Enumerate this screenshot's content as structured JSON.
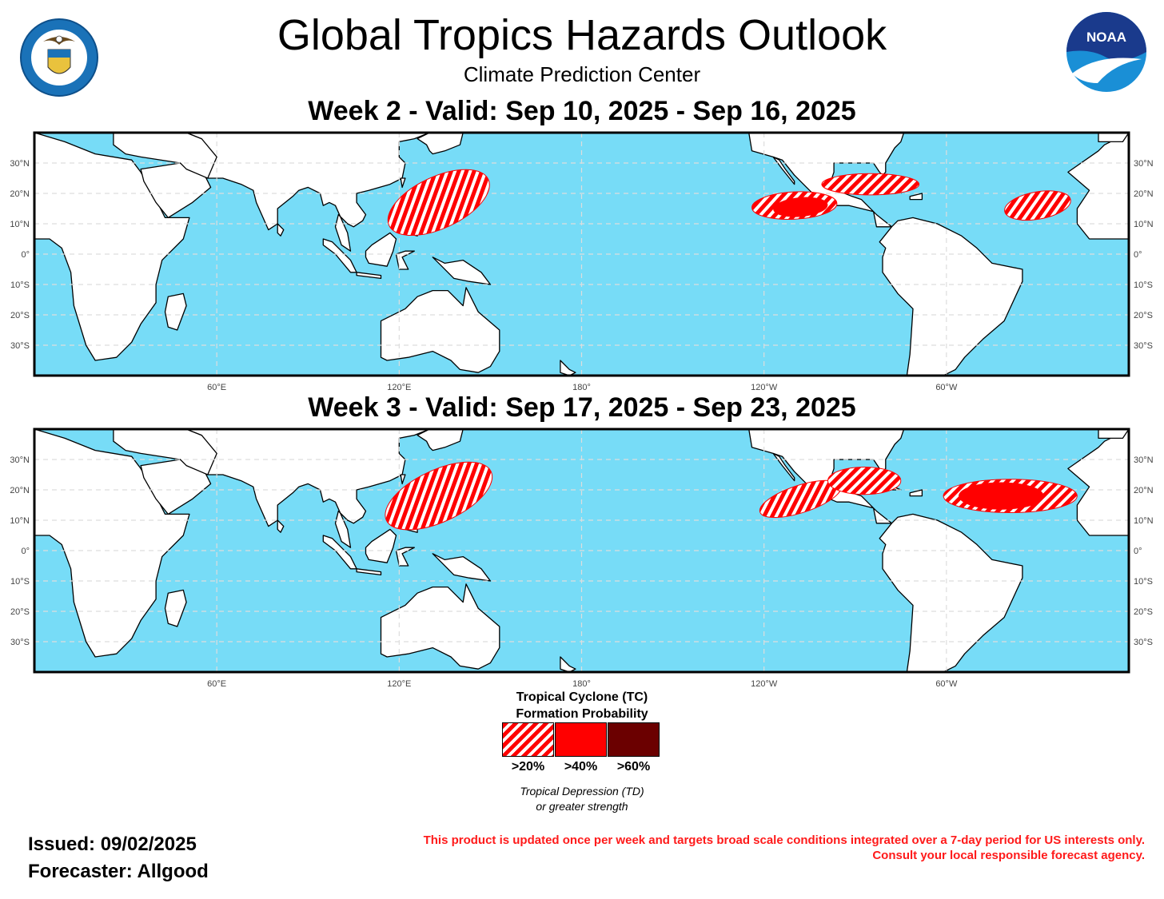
{
  "header": {
    "title": "Global Tropics Hazards Outlook",
    "subtitle": "Climate Prediction Center",
    "left_logo": {
      "icon": "department-of-commerce-seal",
      "ring_text": "DEPARTMENT OF COMMERCE · UNITED STATES OF AMERICA"
    },
    "right_logo": {
      "icon": "noaa-logo",
      "text": "NOAA"
    }
  },
  "maps": [
    {
      "title": "Week 2 - Valid: Sep 10, 2025 - Sep 16, 2025"
    },
    {
      "title": "Week 3 - Valid: Sep 17, 2025 - Sep 23, 2025"
    }
  ],
  "axes": {
    "lon_ticks": [
      "60°E",
      "120°E",
      "180°",
      "120°W",
      "60°W"
    ],
    "lat_ticks": [
      "30°N",
      "20°N",
      "10°N",
      "0°",
      "10°S",
      "20°S",
      "30°S"
    ]
  },
  "colors": {
    "ocean": "#77dcf7",
    "land": "#ffffff",
    "hazard_20": "#ff0000",
    "hazard_40": "#ff0000",
    "hazard_60": "#6b0000",
    "disclaimer": "#ff1a1a"
  },
  "legend": {
    "title_line1": "Tropical Cyclone (TC)",
    "title_line2": "Formation Probability",
    "levels": [
      {
        "label": ">20%",
        "pattern": "hatched-red"
      },
      {
        "label": ">40%",
        "pattern": "solid-red"
      },
      {
        "label": ">60%",
        "pattern": "solid-dark-red"
      }
    ],
    "note_line1": "Tropical Depression (TD)",
    "note_line2": "or greater strength"
  },
  "footer": {
    "issued": "Issued: 09/02/2025",
    "forecaster": "Forecaster: Allgood",
    "disclaimer_line1": "This product is updated once per week and targets broad scale conditions integrated over a 7-day period for US interests only.",
    "disclaimer_line2": "Consult your local responsible forecast agency."
  }
}
